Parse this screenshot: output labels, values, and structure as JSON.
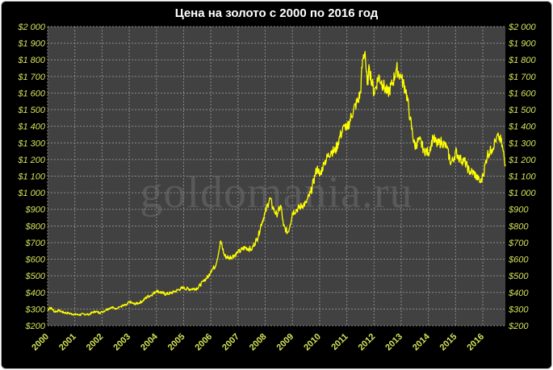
{
  "chart_data": {
    "type": "line",
    "title": "Цена на золото с 2000 по 2016 год",
    "xlabel": "",
    "ylabel": "",
    "watermark": "goldomania.ru",
    "xlim": [
      2000,
      2016.83
    ],
    "ylim": [
      200,
      2000
    ],
    "y_ticks": [
      "$200",
      "$300",
      "$400",
      "$500",
      "$600",
      "$700",
      "$800",
      "$900",
      "$1 000",
      "$1 100",
      "$1 200",
      "$1 300",
      "$1 400",
      "$1 500",
      "$1 600",
      "$1 700",
      "$1 800",
      "$1 900",
      "$2 000"
    ],
    "y_tick_values": [
      200,
      300,
      400,
      500,
      600,
      700,
      800,
      900,
      1000,
      1100,
      1200,
      1300,
      1400,
      1500,
      1600,
      1700,
      1800,
      1900,
      2000
    ],
    "x_ticks": [
      "2000",
      "2001",
      "2002",
      "2003",
      "2004",
      "2005",
      "2006",
      "2007",
      "2008",
      "2009",
      "2010",
      "2011",
      "2012",
      "2013",
      "2014",
      "2015",
      "2016"
    ],
    "grid": true,
    "colors": {
      "plot_bg": "#414141",
      "grid": "#8a8a8a",
      "line": "#ffff00",
      "tick_text": "#d6e35a",
      "title_text": "#ffffff",
      "frame_bg": "#000000"
    },
    "series": [
      {
        "x": [
          2000.0,
          2000.08,
          2000.17,
          2000.25,
          2000.42,
          2000.58,
          2000.75,
          2000.92,
          2001.0,
          2001.17,
          2001.33,
          2001.5,
          2001.67,
          2001.75,
          2001.92,
          2002.0,
          2002.17,
          2002.33,
          2002.5,
          2002.67,
          2002.92,
          2003.0,
          2003.17,
          2003.33,
          2003.5,
          2003.67,
          2003.83,
          2004.0,
          2004.17,
          2004.33,
          2004.5,
          2004.67,
          2004.92,
          2005.0,
          2005.25,
          2005.5,
          2005.75,
          2005.92,
          2006.0,
          2006.17,
          2006.3,
          2006.37,
          2006.5,
          2006.67,
          2006.83,
          2007.0,
          2007.25,
          2007.5,
          2007.75,
          2007.83,
          2008.0,
          2008.17,
          2008.3,
          2008.42,
          2008.58,
          2008.67,
          2008.83,
          2008.92,
          2009.0,
          2009.17,
          2009.33,
          2009.5,
          2009.67,
          2009.83,
          2009.92,
          2010.0,
          2010.17,
          2010.42,
          2010.58,
          2010.75,
          2010.92,
          2011.0,
          2011.25,
          2011.42,
          2011.5,
          2011.58,
          2011.67,
          2011.75,
          2011.83,
          2012.0,
          2012.17,
          2012.33,
          2012.5,
          2012.67,
          2012.83,
          2013.0,
          2013.17,
          2013.33,
          2013.42,
          2013.5,
          2013.67,
          2013.83,
          2014.0,
          2014.17,
          2014.33,
          2014.5,
          2014.67,
          2014.83,
          2014.92,
          2015.0,
          2015.17,
          2015.33,
          2015.5,
          2015.67,
          2015.83,
          2015.92,
          2016.0,
          2016.17,
          2016.33,
          2016.5,
          2016.58,
          2016.67,
          2016.75,
          2016.83
        ],
        "values": [
          290,
          310,
          300,
          285,
          290,
          280,
          275,
          270,
          268,
          265,
          270,
          268,
          280,
          285,
          278,
          282,
          298,
          310,
          305,
          315,
          325,
          345,
          330,
          335,
          350,
          375,
          385,
          410,
          400,
          390,
          395,
          405,
          425,
          425,
          420,
          425,
          470,
          500,
          530,
          560,
          650,
          710,
          620,
          610,
          620,
          640,
          670,
          660,
          740,
          800,
          880,
          970,
          900,
          870,
          920,
          800,
          760,
          810,
          880,
          900,
          920,
          940,
          1000,
          1100,
          1160,
          1100,
          1180,
          1250,
          1250,
          1340,
          1400,
          1380,
          1500,
          1560,
          1600,
          1800,
          1850,
          1650,
          1750,
          1600,
          1700,
          1650,
          1600,
          1650,
          1750,
          1690,
          1620,
          1450,
          1350,
          1280,
          1320,
          1260,
          1240,
          1330,
          1290,
          1310,
          1270,
          1180,
          1200,
          1250,
          1200,
          1190,
          1130,
          1120,
          1080,
          1060,
          1100,
          1230,
          1260,
          1330,
          1340,
          1310,
          1250,
          1170
        ]
      }
    ]
  }
}
